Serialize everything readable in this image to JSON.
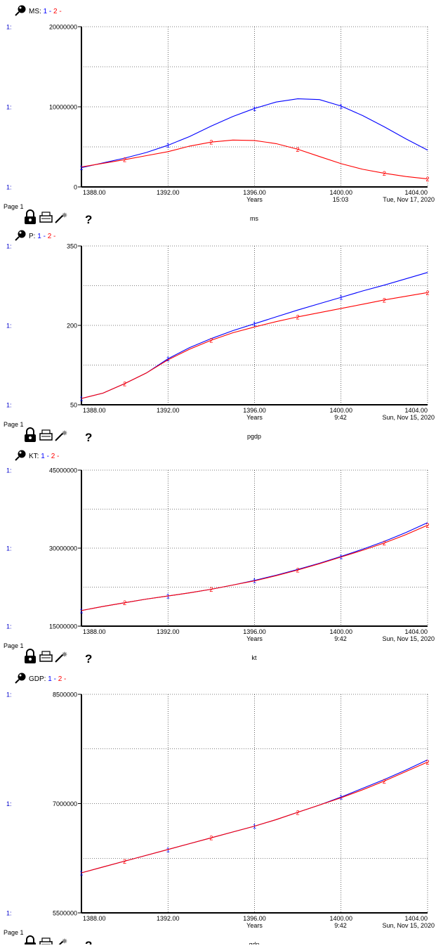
{
  "chart_data": [
    {
      "type": "line",
      "title": "MS:",
      "series_legend": [
        "1",
        "-",
        "2",
        "-"
      ],
      "ylim": [
        0,
        20000000
      ],
      "y_ticks": [
        {
          "value": 0,
          "label": "0"
        },
        {
          "value": 10000000,
          "label": "10000000"
        },
        {
          "value": 20000000,
          "label": "20000000"
        }
      ],
      "axis_prefix": "1:",
      "xlim": [
        1388,
        1404
      ],
      "x_ticks": [
        "1388.00",
        "1392.00",
        "1396.00",
        "1400.00",
        "1404.00"
      ],
      "xlabel": "Years",
      "page_label": "Page 1",
      "time_stamp": "15:03",
      "date_stamp": "Tue, Nov 17, 2020",
      "caption": "ms",
      "x": [
        1388,
        1389,
        1390,
        1391,
        1392,
        1393,
        1394,
        1395,
        1396,
        1397,
        1398,
        1399,
        1400,
        1401,
        1402,
        1403,
        1404
      ],
      "series": [
        {
          "name": "1",
          "color": "#0000ff",
          "values": [
            2400000,
            3000000,
            3600000,
            4300000,
            5200000,
            6300000,
            7600000,
            8800000,
            9800000,
            10600000,
            11000000,
            10900000,
            10100000,
            8900000,
            7500000,
            6000000,
            4600000
          ]
        },
        {
          "name": "2",
          "color": "#ff0000",
          "values": [
            2500000,
            2950000,
            3400000,
            3900000,
            4400000,
            5100000,
            5600000,
            5850000,
            5800000,
            5400000,
            4700000,
            3800000,
            2900000,
            2200000,
            1700000,
            1300000,
            1000000
          ]
        }
      ]
    },
    {
      "type": "line",
      "title": "P:",
      "series_legend": [
        "1",
        "-",
        "2",
        "-"
      ],
      "ylim": [
        50,
        350
      ],
      "y_ticks": [
        {
          "value": 50,
          "label": "50"
        },
        {
          "value": 200,
          "label": "200"
        },
        {
          "value": 350,
          "label": "350"
        }
      ],
      "axis_prefix": "1:",
      "xlim": [
        1388,
        1404
      ],
      "x_ticks": [
        "1388.00",
        "1392.00",
        "1396.00",
        "1400.00",
        "1404.00"
      ],
      "xlabel": "Years",
      "page_label": "Page 1",
      "time_stamp": "9:42",
      "date_stamp": "Sun, Nov 15, 2020",
      "caption": "pgdp",
      "x": [
        1388,
        1389,
        1390,
        1391,
        1392,
        1393,
        1394,
        1395,
        1396,
        1397,
        1398,
        1399,
        1400,
        1401,
        1402,
        1403,
        1404
      ],
      "series": [
        {
          "name": "1",
          "color": "#0000ff",
          "values": [
            62,
            72,
            90,
            110,
            137,
            158,
            175,
            190,
            203,
            216,
            229,
            241,
            253,
            265,
            276,
            288,
            300
          ]
        },
        {
          "name": "2",
          "color": "#ff0000",
          "values": [
            62,
            72,
            90,
            110,
            135,
            155,
            172,
            186,
            197,
            207,
            216,
            224,
            232,
            240,
            248,
            255,
            262
          ]
        }
      ]
    },
    {
      "type": "line",
      "title": "KT:",
      "series_legend": [
        "1",
        "-",
        "2",
        "-"
      ],
      "ylim": [
        15000000,
        45000000
      ],
      "y_ticks": [
        {
          "value": 15000000,
          "label": "15000000"
        },
        {
          "value": 30000000,
          "label": "30000000"
        },
        {
          "value": 45000000,
          "label": "45000000"
        }
      ],
      "axis_prefix": "1:",
      "xlim": [
        1388,
        1404
      ],
      "x_ticks": [
        "1388.00",
        "1392.00",
        "1396.00",
        "1400.00",
        "1404.00"
      ],
      "xlabel": "Years",
      "page_label": "Page 1",
      "time_stamp": "9:42",
      "date_stamp": "Sun, Nov 15, 2020",
      "caption": "kt",
      "x": [
        1388,
        1389,
        1390,
        1391,
        1392,
        1393,
        1394,
        1395,
        1396,
        1397,
        1398,
        1399,
        1400,
        1401,
        1402,
        1403,
        1404
      ],
      "series": [
        {
          "name": "1",
          "color": "#0000ff",
          "values": [
            18000000,
            18800000,
            19500000,
            20200000,
            20800000,
            21400000,
            22100000,
            22900000,
            23800000,
            24800000,
            25900000,
            27100000,
            28400000,
            29800000,
            31300000,
            33000000,
            34900000
          ]
        },
        {
          "name": "2",
          "color": "#ff0000",
          "values": [
            18000000,
            18800000,
            19500000,
            20200000,
            20800000,
            21400000,
            22100000,
            22900000,
            23700000,
            24700000,
            25800000,
            27000000,
            28300000,
            29600000,
            31000000,
            32600000,
            34400000
          ]
        }
      ]
    },
    {
      "type": "line",
      "title": "GDP:",
      "series_legend": [
        "1",
        "-",
        "2",
        "-"
      ],
      "ylim": [
        5500000,
        8500000
      ],
      "y_ticks": [
        {
          "value": 5500000,
          "label": "5500000"
        },
        {
          "value": 7000000,
          "label": "7000000"
        },
        {
          "value": 8500000,
          "label": "8500000"
        }
      ],
      "axis_prefix": "1:",
      "xlim": [
        1388,
        1404
      ],
      "x_ticks": [
        "1388.00",
        "1392.00",
        "1396.00",
        "1400.00",
        "1404.00"
      ],
      "xlabel": "Years",
      "page_label": "Page 1",
      "time_stamp": "9:42",
      "date_stamp": "Sun, Nov 15, 2020",
      "caption": "gdp",
      "x": [
        1388,
        1389,
        1390,
        1391,
        1392,
        1393,
        1394,
        1395,
        1396,
        1397,
        1398,
        1399,
        1400,
        1401,
        1402,
        1403,
        1404
      ],
      "series": [
        {
          "name": "1",
          "color": "#0000ff",
          "values": [
            6050000,
            6130000,
            6210000,
            6290000,
            6370000,
            6450000,
            6530000,
            6610000,
            6690000,
            6780000,
            6880000,
            6980000,
            7090000,
            7210000,
            7330000,
            7460000,
            7600000
          ]
        },
        {
          "name": "2",
          "color": "#ff0000",
          "values": [
            6050000,
            6130000,
            6210000,
            6290000,
            6370000,
            6450000,
            6530000,
            6610000,
            6690000,
            6780000,
            6880000,
            6980000,
            7080000,
            7190000,
            7310000,
            7440000,
            7570000
          ]
        }
      ]
    }
  ],
  "toolbar": {
    "icons": [
      "lock-icon",
      "print-icon",
      "magic-wand-icon",
      "help-icon"
    ],
    "help_glyph": "?"
  },
  "colors": {
    "series1": "#0000ff",
    "series2": "#ff0000",
    "axis_prefix": "#0000cc",
    "grid": "#808080"
  }
}
